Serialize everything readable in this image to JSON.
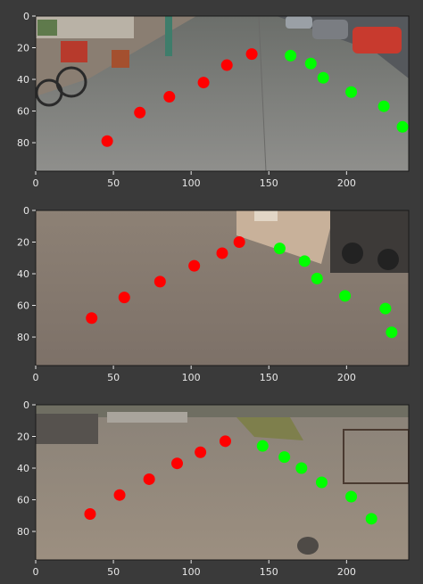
{
  "chart_data": [
    {
      "type": "scatter",
      "xlim": [
        0,
        240
      ],
      "ylim": [
        98,
        0
      ],
      "xticks": [
        "0",
        "50",
        "100",
        "150",
        "200"
      ],
      "yticks": [
        "0",
        "20",
        "40",
        "60",
        "80"
      ],
      "scene": "street-left-bikes-right-cars",
      "series": [
        {
          "color": "#ff0000",
          "points": [
            [
              46,
              79
            ],
            [
              67,
              61
            ],
            [
              86,
              51
            ],
            [
              108,
              42
            ],
            [
              123,
              31
            ],
            [
              139,
              24
            ]
          ]
        },
        {
          "color": "#00ff00",
          "points": [
            [
              164,
              25
            ],
            [
              177,
              30
            ],
            [
              185,
              39
            ],
            [
              203,
              48
            ],
            [
              224,
              57
            ],
            [
              236,
              70
            ]
          ]
        }
      ]
    },
    {
      "type": "scatter",
      "xlim": [
        0,
        240
      ],
      "ylim": [
        98,
        0
      ],
      "xticks": [
        "0",
        "50",
        "100",
        "150",
        "200"
      ],
      "yticks": [
        "0",
        "20",
        "40",
        "60",
        "80"
      ],
      "scene": "road-wall-motorbikes-right",
      "series": [
        {
          "color": "#ff0000",
          "points": [
            [
              36,
              68
            ],
            [
              57,
              55
            ],
            [
              80,
              45
            ],
            [
              102,
              35
            ],
            [
              120,
              27
            ],
            [
              131,
              20
            ]
          ]
        },
        {
          "color": "#00ff00",
          "points": [
            [
              157,
              24
            ],
            [
              173,
              32
            ],
            [
              181,
              43
            ],
            [
              199,
              54
            ],
            [
              225,
              62
            ],
            [
              229,
              77
            ]
          ]
        }
      ]
    },
    {
      "type": "scatter",
      "xlim": [
        0,
        240
      ],
      "ylim": [
        98,
        0
      ],
      "xticks": [
        "0",
        "50",
        "100",
        "150",
        "200"
      ],
      "yticks": [
        "0",
        "20",
        "40",
        "60",
        "80"
      ],
      "scene": "road-cars-left-gate-right",
      "series": [
        {
          "color": "#ff0000",
          "points": [
            [
              35,
              69
            ],
            [
              54,
              57
            ],
            [
              73,
              47
            ],
            [
              91,
              37
            ],
            [
              106,
              30
            ],
            [
              122,
              23
            ]
          ]
        },
        {
          "color": "#00ff00",
          "points": [
            [
              146,
              26
            ],
            [
              160,
              33
            ],
            [
              171,
              40
            ],
            [
              184,
              49
            ],
            [
              203,
              58
            ],
            [
              216,
              72
            ]
          ]
        }
      ]
    }
  ]
}
